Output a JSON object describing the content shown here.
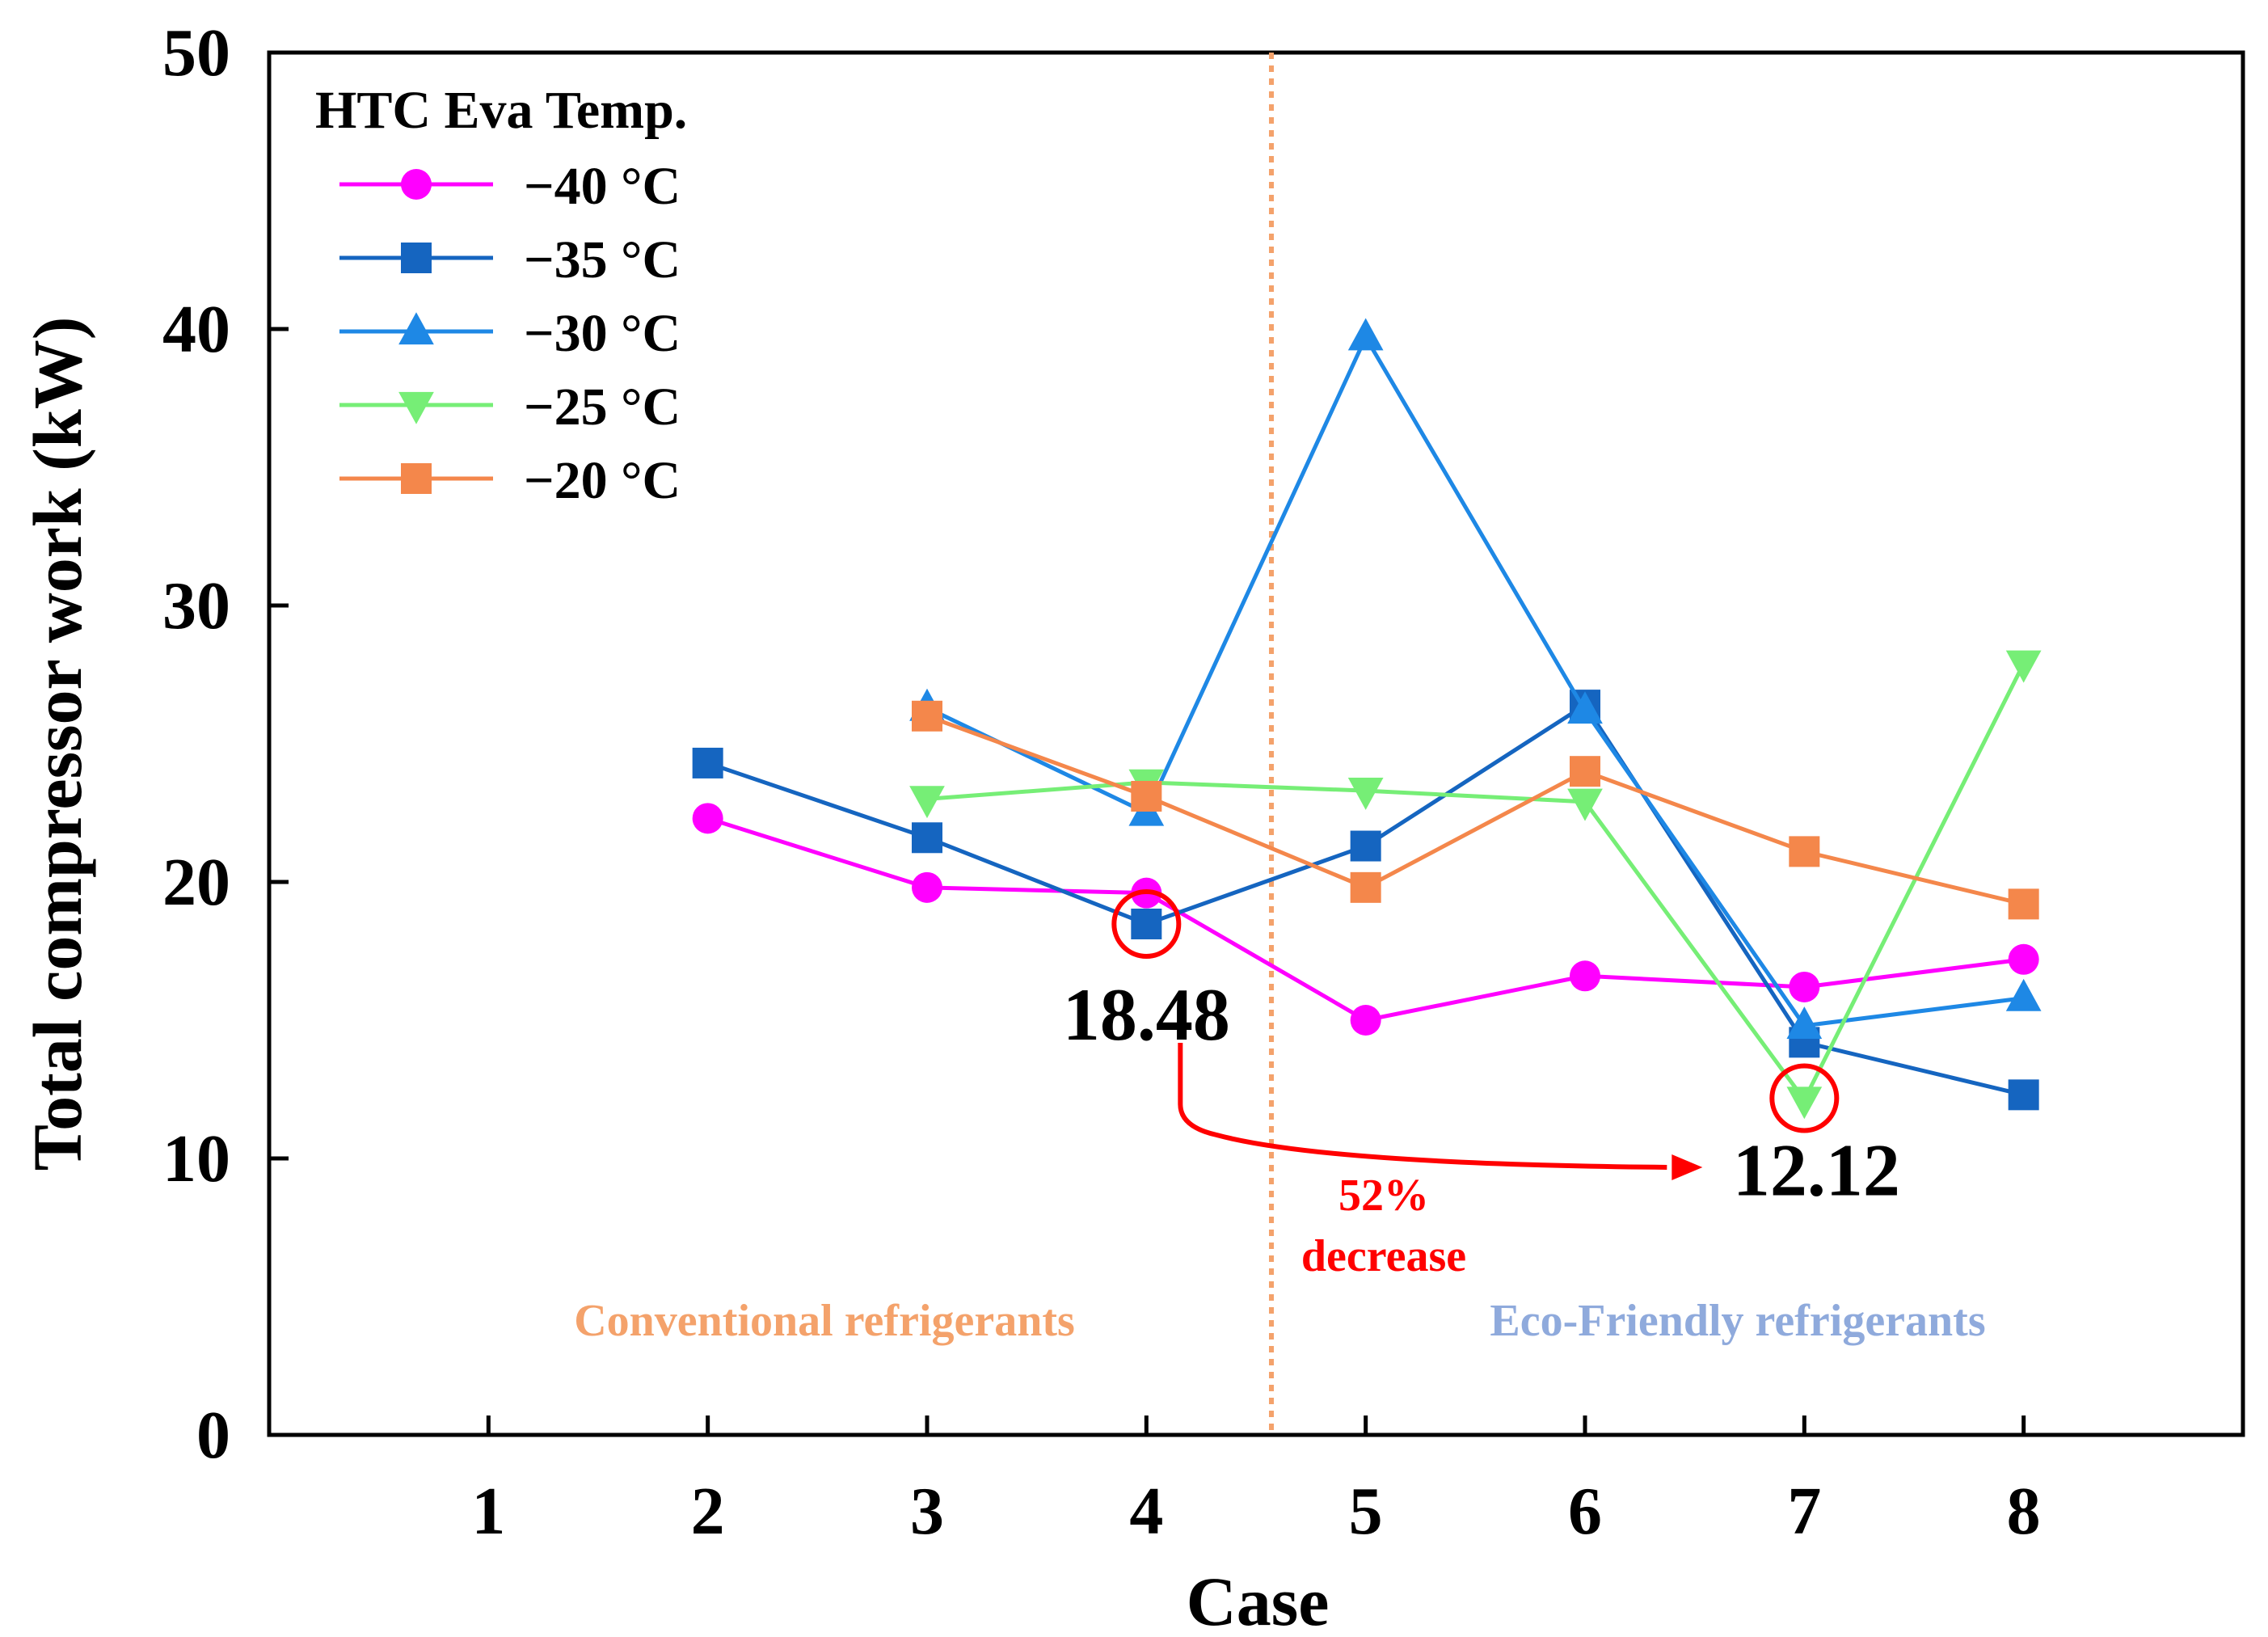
{
  "chart_data": {
    "type": "line",
    "xlabel": "Case",
    "ylabel": "Total compressor work (kW)",
    "x": [
      1,
      2,
      3,
      4,
      5,
      6,
      7,
      8
    ],
    "xlim": [
      0,
      9
    ],
    "ylim": [
      0,
      50
    ],
    "yticks": [
      0,
      10,
      20,
      30,
      40,
      50
    ],
    "legend_title": "HTC Eva Temp.",
    "legend_position": "top-left",
    "grid": false,
    "series": [
      {
        "name": "−40 °C",
        "color": "#ff00ff",
        "marker": "circle",
        "points": [
          [
            2,
            22.3
          ],
          [
            3,
            19.8
          ],
          [
            4,
            19.6
          ],
          [
            5,
            15.0
          ],
          [
            6,
            16.6
          ],
          [
            7,
            16.2
          ],
          [
            8,
            17.2
          ]
        ]
      },
      {
        "name": "−35 °C",
        "color": "#1565c0",
        "marker": "square",
        "points": [
          [
            2,
            24.3
          ],
          [
            3,
            21.6
          ],
          [
            4,
            18.48
          ],
          [
            5,
            21.3
          ],
          [
            6,
            26.4
          ],
          [
            7,
            14.2
          ],
          [
            8,
            12.3
          ]
        ]
      },
      {
        "name": "−30 °C",
        "color": "#1e88e5",
        "marker": "triangle-up",
        "points": [
          [
            3,
            26.3
          ],
          [
            4,
            22.5
          ],
          [
            5,
            39.7
          ],
          [
            6,
            26.2
          ],
          [
            7,
            14.8
          ],
          [
            8,
            15.8
          ]
        ]
      },
      {
        "name": "−25 °C",
        "color": "#76ee76",
        "marker": "triangle-down",
        "points": [
          [
            3,
            23.0
          ],
          [
            4,
            23.6
          ],
          [
            5,
            23.3
          ],
          [
            6,
            22.9
          ],
          [
            7,
            12.12
          ],
          [
            8,
            27.9
          ]
        ]
      },
      {
        "name": "−20 °C",
        "color": "#f4874b",
        "marker": "square",
        "points": [
          [
            3,
            26.0
          ],
          [
            4,
            23.1
          ],
          [
            5,
            19.8
          ],
          [
            6,
            24.0
          ],
          [
            7,
            21.1
          ],
          [
            8,
            19.2
          ]
        ]
      }
    ],
    "divider_x": 4.57,
    "divider_color": "#f4a26b",
    "highlights": [
      {
        "x": 4,
        "y": 18.48,
        "label": "18.48"
      },
      {
        "x": 7,
        "y": 12.12,
        "label": "12.12"
      }
    ],
    "change_annotation": {
      "line1": "52%",
      "line2": "decrease"
    },
    "regions": {
      "left": {
        "label": "Conventional refrigerants",
        "color": "#f4a26b"
      },
      "right": {
        "label": "Eco-Friendly refrigerants",
        "color": "#8faadc"
      }
    }
  }
}
